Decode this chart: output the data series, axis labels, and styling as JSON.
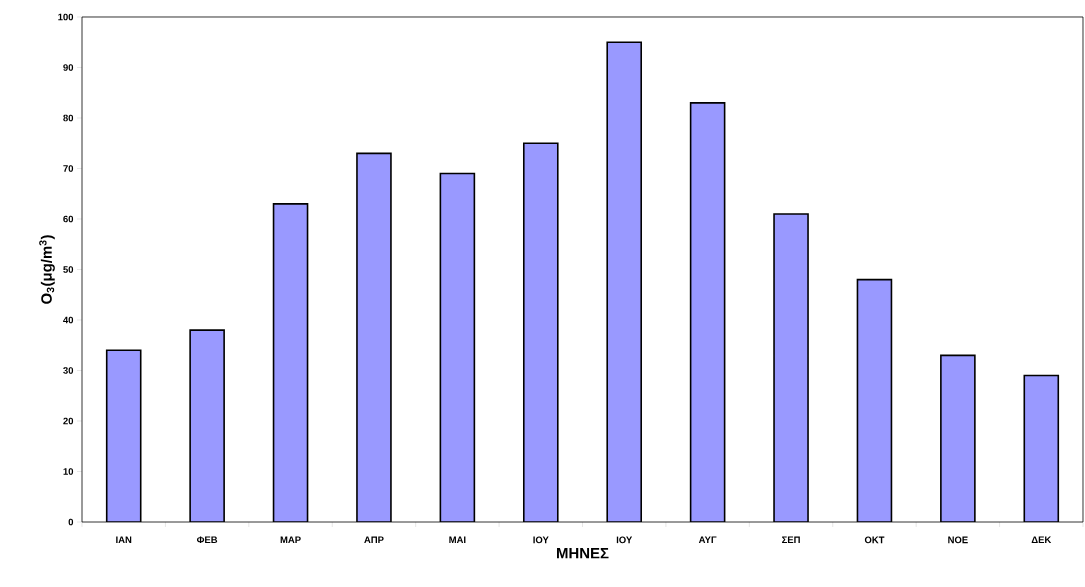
{
  "chart_data": {
    "type": "bar",
    "xlabel": "ΜΗΝΕΣ",
    "ylabel": "O$_{3}$(μg/m$^{3}$)",
    "categories": [
      "ΙΑΝ",
      "ΦΕΒ",
      "ΜΑΡ",
      "ΑΠΡ",
      "ΜΑΙ",
      "ΙΟΥ",
      "ΙΟΥ",
      "ΑΥΓ",
      "ΣΕΠ",
      "ΟΚΤ",
      "ΝΟΕ",
      "ΔΕΚ"
    ],
    "values": [
      34,
      38,
      63,
      73,
      69,
      75,
      95,
      83,
      61,
      48,
      33,
      29
    ],
    "color": "#9999ff",
    "ylim": [
      0,
      100
    ],
    "yticks": [
      0,
      10,
      20,
      30,
      40,
      50,
      60,
      70,
      80,
      90,
      100
    ]
  }
}
